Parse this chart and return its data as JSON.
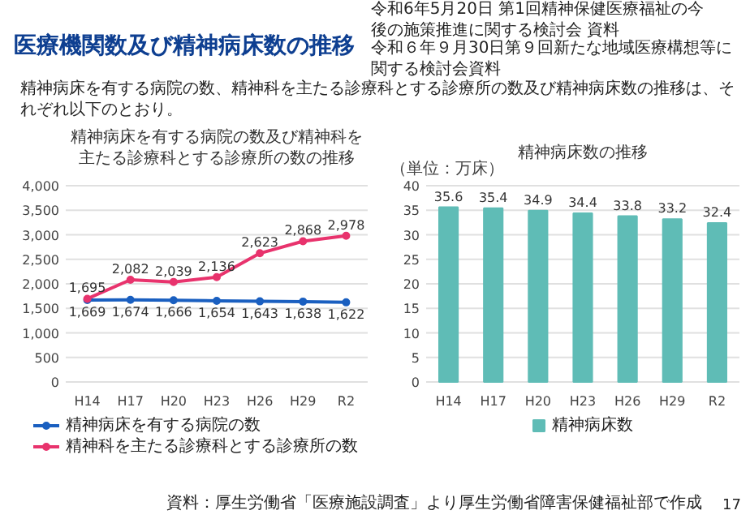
{
  "chart_data": [
    {
      "type": "other",
      "title": "医療機関数及び精神病床数の推移",
      "annotations": [
        "令和6年5月20日 第1回精神保健医療福祉の今後の施策推進に関する検討会 資料",
        "令和６年９月30日第９回新たな地域医療構想等に関する検討会資料",
        "精神病床を有する病院の数、精神科を主たる診療科とする診療所の数及び精神病床数の推移は、それぞれ以下のとおり。"
      ]
    },
    {
      "type": "line",
      "title": "精神病床を有する病院の数及び精神科を主たる診療科とする診療所の数の推移",
      "categories": [
        "H14",
        "H17",
        "H20",
        "H23",
        "H26",
        "H29",
        "R2"
      ],
      "series": [
        {
          "name": "精神病床を有する病院の数",
          "color": "#1a5fc0",
          "values": [
            1669,
            1674,
            1666,
            1654,
            1643,
            1638,
            1622
          ],
          "value_labels": [
            "1,669",
            "1,674",
            "1,666",
            "1,654",
            "1,643",
            "1,638",
            "1,622"
          ]
        },
        {
          "name": "精神科を主たる診療科とする診療所の数",
          "color": "#e8336d",
          "values": [
            1695,
            2082,
            2039,
            2136,
            2623,
            2868,
            2978
          ],
          "value_labels": [
            "1,695",
            "2,082",
            "2,039",
            "2,136",
            "2,623",
            "2,868",
            "2,978"
          ]
        }
      ],
      "ylim": [
        0,
        4000
      ],
      "yticks": [
        0,
        500,
        {
          "value": 1000,
          "label": "1,000"
        },
        {
          "value": 1500,
          "label": "1,500"
        },
        {
          "value": 2000,
          "label": "2,000"
        },
        {
          "value": 2500,
          "label": "2,500"
        },
        {
          "value": 3000,
          "label": "3,000"
        },
        {
          "value": 3500,
          "label": "3,500"
        },
        {
          "value": 4000,
          "label": "4,000"
        }
      ],
      "grid": "y",
      "legend": "bottom",
      "marker": "circle",
      "line_style": "solid"
    },
    {
      "type": "bar",
      "title": "精神病床数の推移",
      "ylabel": "（単位：万床）",
      "categories": [
        "H14",
        "H17",
        "H20",
        "H23",
        "H26",
        "H29",
        "R2"
      ],
      "series": [
        {
          "name": "精神病床数",
          "color": "#5fbcb6",
          "values": [
            35.6,
            35.4,
            34.9,
            34.4,
            33.8,
            33.2,
            32.4
          ]
        }
      ],
      "ylim": [
        0,
        40
      ],
      "yticks": [
        0,
        5,
        10,
        15,
        20,
        25,
        30,
        35,
        40
      ],
      "grid": "y",
      "legend": "bottom",
      "data_labels": true
    },
    {
      "type": "other",
      "annotations": [
        "資料：厚生労働省「医療施設調査」より厚生労働省障害保健福祉部で作成",
        "17"
      ]
    }
  ]
}
